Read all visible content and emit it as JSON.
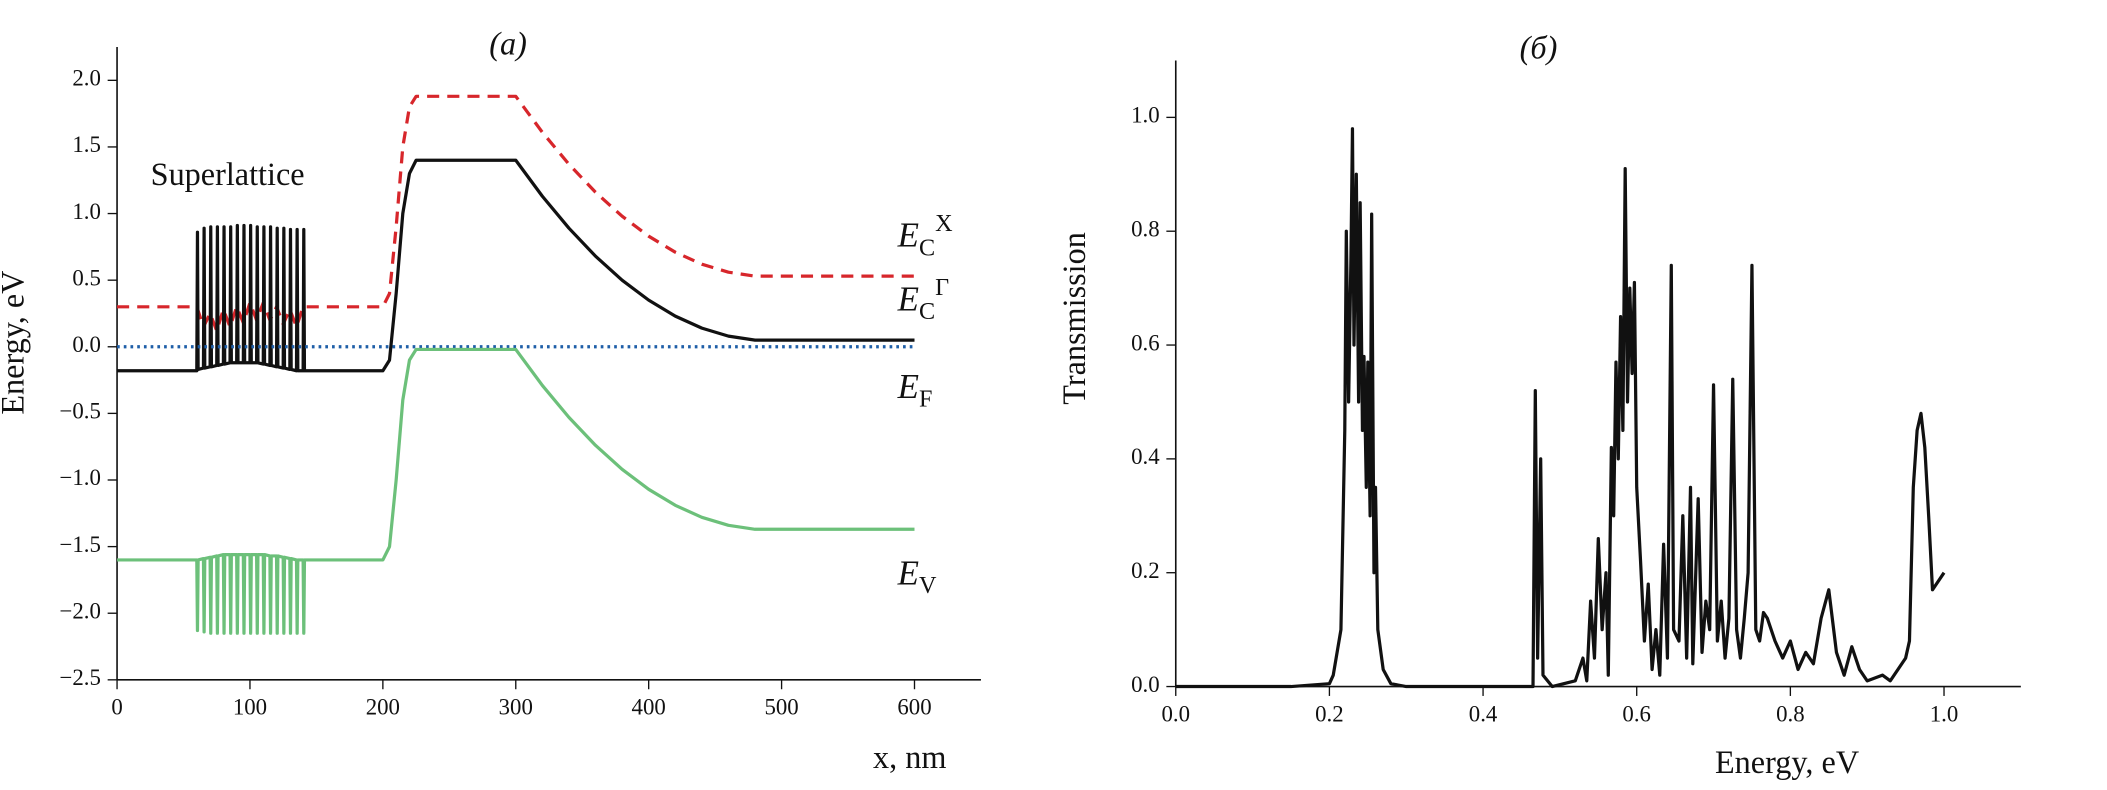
{
  "chart_data": [
    {
      "type": "line",
      "title": "(a)",
      "x_label": "x, nm",
      "y_label": "Energy, eV",
      "annotation": "Superlattice",
      "xlim": [
        0,
        650
      ],
      "xticks": [
        0,
        100,
        200,
        300,
        400,
        500,
        600
      ],
      "ylim": [
        -2.5,
        2.25
      ],
      "yticks": [
        {
          "value": -2.5,
          "label": "−2.5"
        },
        {
          "value": -2,
          "label": "−2.0"
        },
        {
          "value": -1.5,
          "label": "−1.5"
        },
        {
          "value": -1,
          "label": "−1.0"
        },
        {
          "value": -0.5,
          "label": "−0.5"
        },
        {
          "value": 0,
          "label": "0.0"
        },
        {
          "value": 0.5,
          "label": "0.5"
        },
        {
          "value": 1,
          "label": "1.0"
        },
        {
          "value": 1.5,
          "label": "1.5"
        },
        {
          "value": 2,
          "label": "2.0"
        }
      ],
      "series": [
        {
          "name": "E",
          "subscript": "C",
          "superscript": "X",
          "color": "#d7262b",
          "dash": "dashed",
          "x": [
            0,
            60,
            65,
            70,
            75,
            80,
            85,
            90,
            95,
            100,
            105,
            110,
            115,
            120,
            125,
            130,
            135,
            140,
            200,
            205,
            210,
            215,
            220,
            225,
            300,
            320,
            340,
            360,
            380,
            400,
            420,
            440,
            460,
            480,
            500,
            600
          ],
          "values": [
            0.3,
            0.3,
            0.15,
            0.25,
            0.12,
            0.28,
            0.15,
            0.3,
            0.18,
            0.33,
            0.2,
            0.33,
            0.2,
            0.3,
            0.17,
            0.28,
            0.15,
            0.3,
            0.3,
            0.4,
            0.9,
            1.5,
            1.8,
            1.88,
            1.88,
            1.61,
            1.37,
            1.16,
            0.98,
            0.83,
            0.71,
            0.62,
            0.56,
            0.53,
            0.53,
            0.53
          ]
        },
        {
          "name": "E",
          "subscript": "C",
          "superscript": "Γ",
          "color": "#111111",
          "dash": "solid",
          "x": [
            0,
            60,
            60.5,
            61,
            65,
            65.5,
            66,
            70,
            70.5,
            71,
            75,
            75.5,
            76,
            80,
            80.5,
            81,
            85,
            85.5,
            86,
            90,
            90.5,
            91,
            95,
            95.5,
            96,
            100,
            100.5,
            101,
            105,
            105.5,
            106,
            110,
            110.5,
            111,
            115,
            115.5,
            116,
            120,
            120.5,
            121,
            125,
            125.5,
            126,
            130,
            130.5,
            131,
            135,
            135.5,
            136,
            140,
            140.5,
            141,
            200,
            205,
            210,
            215,
            220,
            225,
            300,
            320,
            340,
            360,
            380,
            400,
            420,
            440,
            460,
            480,
            500,
            600
          ],
          "values": [
            -0.18,
            -0.18,
            0.86,
            -0.17,
            -0.16,
            0.89,
            -0.16,
            -0.15,
            0.9,
            -0.15,
            -0.14,
            0.9,
            -0.14,
            -0.13,
            0.9,
            -0.13,
            -0.12,
            0.9,
            -0.12,
            -0.12,
            0.91,
            -0.12,
            -0.12,
            0.91,
            -0.12,
            -0.12,
            0.91,
            -0.12,
            -0.12,
            0.9,
            -0.12,
            -0.13,
            0.9,
            -0.13,
            -0.14,
            0.9,
            -0.14,
            -0.15,
            0.89,
            -0.15,
            -0.16,
            0.89,
            -0.16,
            -0.17,
            0.88,
            -0.17,
            -0.18,
            0.88,
            -0.18,
            -0.18,
            0.88,
            -0.18,
            -0.18,
            -0.1,
            0.4,
            1.0,
            1.3,
            1.4,
            1.4,
            1.13,
            0.89,
            0.68,
            0.5,
            0.35,
            0.23,
            0.14,
            0.08,
            0.05,
            0.05,
            0.05
          ]
        },
        {
          "name": "E",
          "subscript": "F",
          "color": "#1f5fa8",
          "dash": "dotted",
          "x": [
            0,
            600
          ],
          "values": [
            0,
            0
          ]
        },
        {
          "name": "E",
          "subscript": "V",
          "color": "#6cc07a",
          "dash": "solid",
          "x": [
            0,
            60,
            60.5,
            61,
            65,
            65.5,
            66,
            70,
            70.5,
            71,
            75,
            75.5,
            76,
            80,
            80.5,
            81,
            85,
            85.5,
            86,
            90,
            90.5,
            91,
            95,
            95.5,
            96,
            100,
            100.5,
            101,
            105,
            105.5,
            106,
            110,
            110.5,
            111,
            115,
            115.5,
            116,
            120,
            120.5,
            121,
            125,
            125.5,
            126,
            130,
            130.5,
            131,
            135,
            135.5,
            136,
            140,
            140.5,
            141,
            200,
            205,
            210,
            215,
            220,
            225,
            300,
            320,
            340,
            360,
            380,
            400,
            420,
            440,
            460,
            480,
            500,
            600
          ],
          "values": [
            -1.6,
            -1.6,
            -2.13,
            -1.6,
            -1.59,
            -2.14,
            -1.59,
            -1.58,
            -2.15,
            -1.58,
            -1.57,
            -2.15,
            -1.57,
            -1.56,
            -2.15,
            -1.56,
            -1.56,
            -2.15,
            -1.56,
            -1.56,
            -2.15,
            -1.56,
            -1.56,
            -2.15,
            -1.56,
            -1.56,
            -2.15,
            -1.56,
            -1.56,
            -2.15,
            -1.56,
            -1.56,
            -2.15,
            -1.56,
            -1.57,
            -2.15,
            -1.57,
            -1.57,
            -2.15,
            -1.57,
            -1.58,
            -2.15,
            -1.58,
            -1.59,
            -2.15,
            -1.59,
            -1.6,
            -2.15,
            -1.6,
            -1.6,
            -2.15,
            -1.6,
            -1.6,
            -1.5,
            -1.0,
            -0.4,
            -0.1,
            -0.02,
            -0.02,
            -0.29,
            -0.53,
            -0.74,
            -0.92,
            -1.07,
            -1.19,
            -1.28,
            -1.34,
            -1.37,
            -1.37,
            -1.37
          ]
        }
      ]
    },
    {
      "type": "line",
      "title": "(б)",
      "x_label": "Energy, eV",
      "y_label": "Transmission",
      "xlim": [
        0,
        1.1
      ],
      "xticks": [
        {
          "value": 0,
          "label": "0.0"
        },
        0.2,
        0.4,
        0.6,
        0.8,
        {
          "value": 1,
          "label": "1.0"
        }
      ],
      "ylim": [
        0,
        1.1
      ],
      "yticks": [
        {
          "value": 0,
          "label": "0.0"
        },
        0.2,
        0.4,
        0.6,
        0.8,
        {
          "value": 1,
          "label": "1.0"
        }
      ],
      "series": [
        {
          "color": "#111111",
          "dash": "solid",
          "x": [
            0,
            0.05,
            0.1,
            0.15,
            0.2,
            0.205,
            0.215,
            0.22,
            0.222,
            0.225,
            0.228,
            0.23,
            0.232,
            0.235,
            0.238,
            0.24,
            0.243,
            0.245,
            0.248,
            0.25,
            0.253,
            0.255,
            0.258,
            0.26,
            0.263,
            0.27,
            0.28,
            0.3,
            0.46,
            0.465,
            0.468,
            0.471,
            0.475,
            0.478,
            0.49,
            0.52,
            0.53,
            0.535,
            0.54,
            0.545,
            0.55,
            0.555,
            0.56,
            0.563,
            0.567,
            0.57,
            0.573,
            0.576,
            0.579,
            0.582,
            0.585,
            0.588,
            0.591,
            0.594,
            0.597,
            0.6,
            0.605,
            0.61,
            0.615,
            0.62,
            0.625,
            0.63,
            0.635,
            0.64,
            0.645,
            0.648,
            0.655,
            0.66,
            0.665,
            0.67,
            0.673,
            0.68,
            0.685,
            0.69,
            0.695,
            0.7,
            0.705,
            0.71,
            0.715,
            0.72,
            0.725,
            0.73,
            0.735,
            0.74,
            0.745,
            0.75,
            0.755,
            0.76,
            0.765,
            0.77,
            0.78,
            0.79,
            0.8,
            0.81,
            0.82,
            0.83,
            0.84,
            0.85,
            0.86,
            0.87,
            0.88,
            0.89,
            0.9,
            0.92,
            0.93,
            0.94,
            0.95,
            0.955,
            0.96,
            0.965,
            0.97,
            0.975,
            0.98,
            0.985,
            0.99,
            1.0
          ],
          "values": [
            0,
            0,
            0,
            0,
            0.005,
            0.02,
            0.1,
            0.45,
            0.8,
            0.5,
            0.75,
            0.98,
            0.6,
            0.9,
            0.5,
            0.85,
            0.45,
            0.58,
            0.35,
            0.57,
            0.3,
            0.83,
            0.2,
            0.35,
            0.1,
            0.03,
            0.005,
            0,
            0,
            0,
            0.52,
            0.05,
            0.4,
            0.02,
            0,
            0.01,
            0.05,
            0.01,
            0.15,
            0.05,
            0.26,
            0.1,
            0.2,
            0.02,
            0.42,
            0.3,
            0.57,
            0.4,
            0.65,
            0.45,
            0.91,
            0.5,
            0.7,
            0.55,
            0.71,
            0.35,
            0.22,
            0.08,
            0.18,
            0.03,
            0.1,
            0.02,
            0.25,
            0.05,
            0.74,
            0.1,
            0.08,
            0.3,
            0.05,
            0.35,
            0.04,
            0.33,
            0.06,
            0.15,
            0.1,
            0.53,
            0.08,
            0.15,
            0.05,
            0.12,
            0.54,
            0.1,
            0.05,
            0.12,
            0.2,
            0.74,
            0.1,
            0.08,
            0.13,
            0.12,
            0.08,
            0.05,
            0.08,
            0.03,
            0.06,
            0.04,
            0.12,
            0.17,
            0.06,
            0.02,
            0.07,
            0.03,
            0.01,
            0.02,
            0.01,
            0.03,
            0.05,
            0.08,
            0.35,
            0.45,
            0.48,
            0.42,
            0.3,
            0.17,
            0.18,
            0.2
          ]
        }
      ]
    }
  ]
}
